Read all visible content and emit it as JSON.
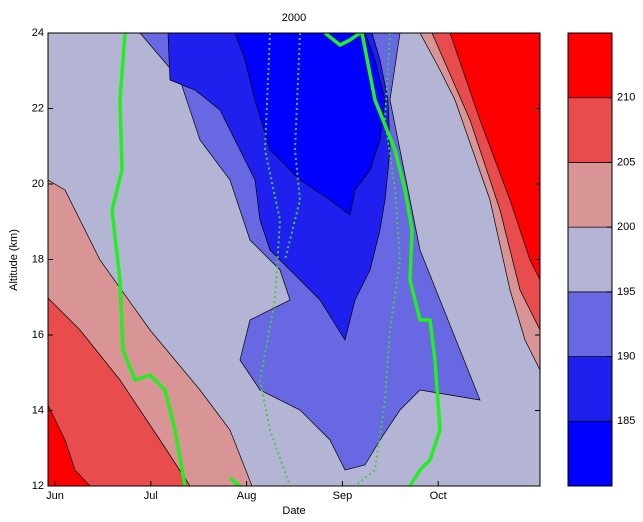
{
  "chart_data": {
    "type": "contour",
    "title": "2000",
    "x_label": "Date",
    "y_label": "Altitude (km)",
    "categories": [
      "Jun",
      "Jul",
      "Aug",
      "Sep",
      "Oct"
    ],
    "ylim": [
      12,
      24
    ],
    "yticks": [
      12,
      14,
      16,
      18,
      20,
      22,
      24
    ],
    "colorbar": {
      "levels": [
        180,
        185,
        190,
        195,
        200,
        205,
        210,
        215
      ],
      "ticks": [
        185,
        190,
        195,
        200,
        205,
        210
      ],
      "colors": [
        "#0000ff",
        "#1f1fee",
        "#6868e2",
        "#b4b4d4",
        "#d99595",
        "#e84c4c",
        "#ff0000"
      ]
    }
  }
}
